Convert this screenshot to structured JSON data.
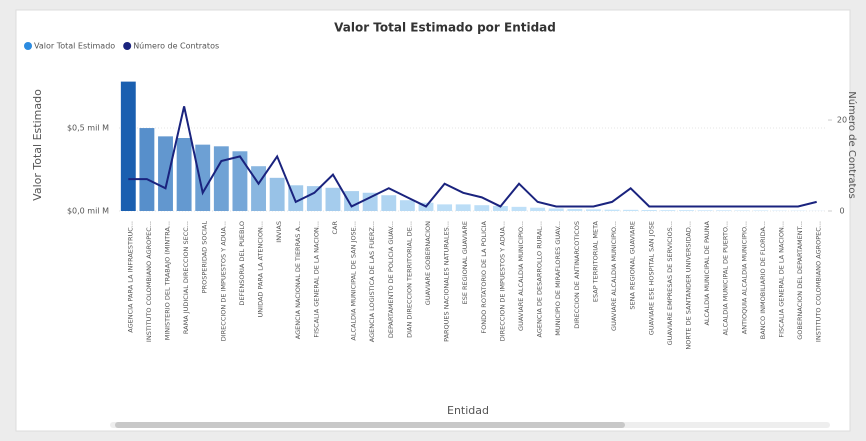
{
  "chart_data": {
    "type": "bar_line",
    "title": "Valor Total Estimado por Entidad",
    "xlabel": "Entidad",
    "ylabel": "Valor Total Estimado",
    "y2label": "Número de Contratos",
    "categories": [
      "AGENCIA PARA LA INFRAESTRUC...",
      "INSTITUTO COLOMBIANO AGROPEC...",
      "MINISTERIO DEL TRABAJO (MINTRA...",
      "RAMA JUDICIAL DIRECCION SECC...",
      "PROSPERIDAD SOCIAL",
      "DIRECCION DE IMPUESTOS Y ADUA...",
      "DEFENSORIA DEL PUEBLO",
      "UNIDAD PARA LA ATENCION...",
      "INVIAS",
      "AGENCIA NACIONAL DE TIERRAS A...",
      "FISCALIA GENERAL DE LA NACION...",
      "CAR",
      "ALCALDIA MUNICIPAL DE SAN JOSE...",
      "AGENCIA LOGISTICA DE LAS FUERZ...",
      "DEPARTAMENTO DE POLICIA GUAV...",
      "DIAN DIRECCION TERRITORIAL DE...",
      "GUAVIARE GOBERNACION",
      "PARQUES NACIONALES NATURALES...",
      "ESE REGIONAL GUAVIARE",
      "FONDO ROTATORIO DE LA POLICIA",
      "DIRECCION DE IMPUESTOS Y ADUA...",
      "GUAVIARE ALCALDIA MUNICIPIO...",
      "AGENCIA DE DESARROLLO RURAL...",
      "MUNICIPIO DE MIRAFLORES GUAV...",
      "DIRECCION DE ANTINARCOTICOS",
      "ESAP TERRITORIAL META",
      "GUAVIARE ALCALDIA MUNICIPIO...",
      "SENA REGIONAL GUAVIARE",
      "GUAVIARE ESE HOSPITAL SAN JOSE",
      "GUAVIARE EMPRESAS DE SERVICIOS...",
      "NORTE DE SANTANDER UNIVERSIDAD...",
      "ALCALDIA MUNICIPAL DE PAUNA",
      "ALCALDIA MUNICIPAL DE PUERTO...",
      "ANTIOQUIA ALCALDIA MUNICIPIO...",
      "BANCO INMOBILIARIO DE FLORIDA...",
      "FISCALIA GENERAL DE LA NACION...",
      "GOBERNACION DEL DEPARTAMENT...",
      "INSTITUTO COLOMBIANO AGROPEC..."
    ],
    "series": [
      {
        "name": "Valor Total Estimado",
        "color": "#2b8be0",
        "color_scale": [
          "#c4e4fa",
          "#1a5fb0"
        ],
        "values": [
          0.78,
          0.5,
          0.45,
          0.44,
          0.4,
          0.39,
          0.36,
          0.27,
          0.2,
          0.155,
          0.15,
          0.14,
          0.12,
          0.11,
          0.095,
          0.065,
          0.05,
          0.04,
          0.04,
          0.035,
          0.03,
          0.025,
          0.02,
          0.015,
          0.012,
          0.01,
          0.008,
          0.007,
          0.006,
          0.005,
          0.005,
          0.004,
          0.004,
          0.003,
          0.003,
          0.002,
          0.002,
          0.001
        ]
      },
      {
        "name": "Número de Contratos",
        "color": "#1a237e",
        "axis": "y2",
        "values": [
          7,
          7,
          5,
          23,
          4,
          11,
          12,
          6,
          12,
          2,
          4,
          8,
          1,
          3,
          5,
          3,
          1,
          6,
          4,
          3,
          1,
          6,
          2,
          1,
          1,
          1,
          2,
          5,
          1,
          1,
          1,
          1,
          1,
          1,
          1,
          1,
          1,
          2
        ]
      }
    ],
    "ylim": [
      0,
      0.85
    ],
    "yticks": [
      {
        "value": 0,
        "label": "$0,0 mil M"
      },
      {
        "value": 0.5,
        "label": "$0,5 mil M"
      }
    ],
    "y2lim": [
      0,
      31
    ],
    "y2ticks": [
      0,
      20
    ]
  }
}
